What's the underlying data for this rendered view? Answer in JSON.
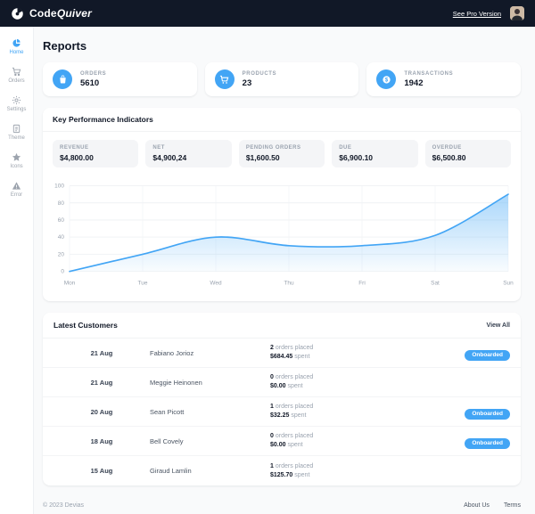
{
  "colors": {
    "accent": "#42a5f5",
    "navbar_bg": "#111827",
    "page_bg": "#f9fafb",
    "badge_bg": "#42a5f5"
  },
  "navbar": {
    "logo_code": "Code",
    "logo_quiver": "Quiver",
    "pro_link": "See Pro Version"
  },
  "sidebar": {
    "items": [
      {
        "label": "Home",
        "icon": "pie-chart-icon",
        "active": true
      },
      {
        "label": "Orders",
        "icon": "cart-icon",
        "active": false
      },
      {
        "label": "Settings",
        "icon": "gear-icon",
        "active": false
      },
      {
        "label": "Theme",
        "icon": "file-icon",
        "active": false
      },
      {
        "label": "Icons",
        "icon": "star-icon",
        "active": false
      },
      {
        "label": "Error",
        "icon": "warning-icon",
        "active": false
      }
    ]
  },
  "page_title": "Reports",
  "stats": [
    {
      "label": "ORDERS",
      "value": "5610",
      "icon": "shopping-bag-icon"
    },
    {
      "label": "PRODUCTS",
      "value": "23",
      "icon": "cart-icon"
    },
    {
      "label": "TRANSACTIONS",
      "value": "1942",
      "icon": "dollar-circle-icon"
    }
  ],
  "kpi": {
    "title": "Key Performance Indicators",
    "items": [
      {
        "label": "REVENUE",
        "value": "$4,800.00"
      },
      {
        "label": "NET",
        "value": "$4,900,24"
      },
      {
        "label": "PENDING ORDERS",
        "value": "$1,600.50"
      },
      {
        "label": "DUE",
        "value": "$6,900.10"
      },
      {
        "label": "OVERDUE",
        "value": "$6,500.80"
      }
    ]
  },
  "chart_data": {
    "type": "area",
    "title": "",
    "x": [
      "Mon",
      "Tue",
      "Wed",
      "Thu",
      "Fri",
      "Sat",
      "Sun"
    ],
    "values": [
      0,
      20,
      40,
      30,
      30,
      42,
      90
    ],
    "ylim": [
      0,
      100
    ],
    "yticks": [
      0,
      20,
      40,
      60,
      80,
      100
    ],
    "line_color": "#42a5f5",
    "fill_color": "#42a5f5",
    "grid": true,
    "legend": "none"
  },
  "customers": {
    "title": "Latest Customers",
    "view_all": "View All",
    "rows": [
      {
        "date": "21 Aug",
        "name": "Fabiano Jorioz",
        "orders": "2",
        "orders_label": "orders placed",
        "spent": "$684.45",
        "spent_label": "spent",
        "badge": "Onboarded"
      },
      {
        "date": "21 Aug",
        "name": "Meggie Heinonen",
        "orders": "0",
        "orders_label": "orders placed",
        "spent": "$0.00",
        "spent_label": "spent",
        "badge": ""
      },
      {
        "date": "20 Aug",
        "name": "Sean Picott",
        "orders": "1",
        "orders_label": "orders placed",
        "spent": "$32.25",
        "spent_label": "spent",
        "badge": "Onboarded"
      },
      {
        "date": "18 Aug",
        "name": "Bell Covely",
        "orders": "0",
        "orders_label": "orders placed",
        "spent": "$0.00",
        "spent_label": "spent",
        "badge": "Onboarded"
      },
      {
        "date": "15 Aug",
        "name": "Giraud Lamlin",
        "orders": "1",
        "orders_label": "orders placed",
        "spent": "$125.70",
        "spent_label": "spent",
        "badge": ""
      }
    ]
  },
  "footer": {
    "copyright": "© 2023 Devias",
    "links": [
      "About Us",
      "Terms"
    ]
  }
}
